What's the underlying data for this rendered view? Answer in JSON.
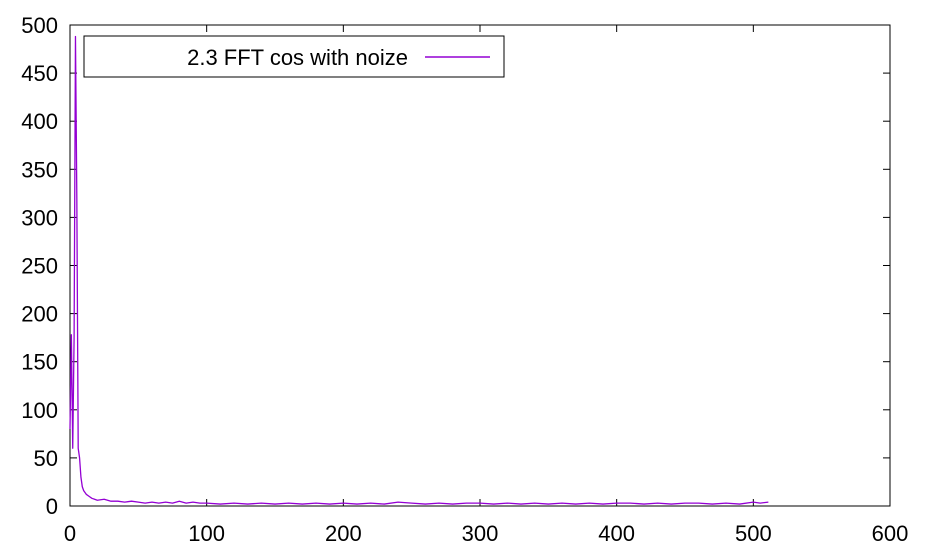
{
  "chart_data": {
    "type": "line",
    "xlim": [
      0,
      600
    ],
    "ylim": [
      0,
      500
    ],
    "xticks": [
      0,
      100,
      200,
      300,
      400,
      500,
      600
    ],
    "yticks": [
      0,
      50,
      100,
      150,
      200,
      250,
      300,
      350,
      400,
      450,
      500
    ],
    "grid": false,
    "legend_position": "top-left",
    "series": [
      {
        "name": "2.3 FFT cos with noize",
        "color": "#9400d3",
        "x": [
          0,
          1,
          2,
          3,
          4,
          5,
          6,
          7,
          8,
          9,
          10,
          12,
          14,
          16,
          18,
          20,
          25,
          30,
          35,
          40,
          45,
          50,
          55,
          60,
          65,
          70,
          75,
          80,
          85,
          90,
          95,
          100,
          110,
          120,
          130,
          140,
          150,
          160,
          170,
          180,
          190,
          200,
          210,
          220,
          230,
          240,
          250,
          260,
          270,
          280,
          290,
          300,
          310,
          320,
          330,
          340,
          350,
          360,
          370,
          380,
          390,
          400,
          410,
          420,
          430,
          440,
          450,
          460,
          470,
          480,
          490,
          500,
          505,
          511
        ],
        "y": [
          80,
          178,
          60,
          175,
          488,
          320,
          60,
          50,
          30,
          20,
          16,
          12,
          10,
          8,
          7,
          6,
          7,
          5,
          5,
          4,
          5,
          4,
          3,
          4,
          3,
          4,
          3,
          5,
          3,
          4,
          3,
          3,
          2,
          3,
          2,
          3,
          2,
          3,
          2,
          3,
          2,
          3,
          2,
          3,
          2,
          4,
          3,
          2,
          3,
          2,
          3,
          3,
          2,
          3,
          2,
          3,
          2,
          3,
          2,
          3,
          2,
          3,
          3,
          2,
          3,
          2,
          3,
          3,
          2,
          3,
          2,
          4,
          3,
          4
        ]
      }
    ]
  }
}
